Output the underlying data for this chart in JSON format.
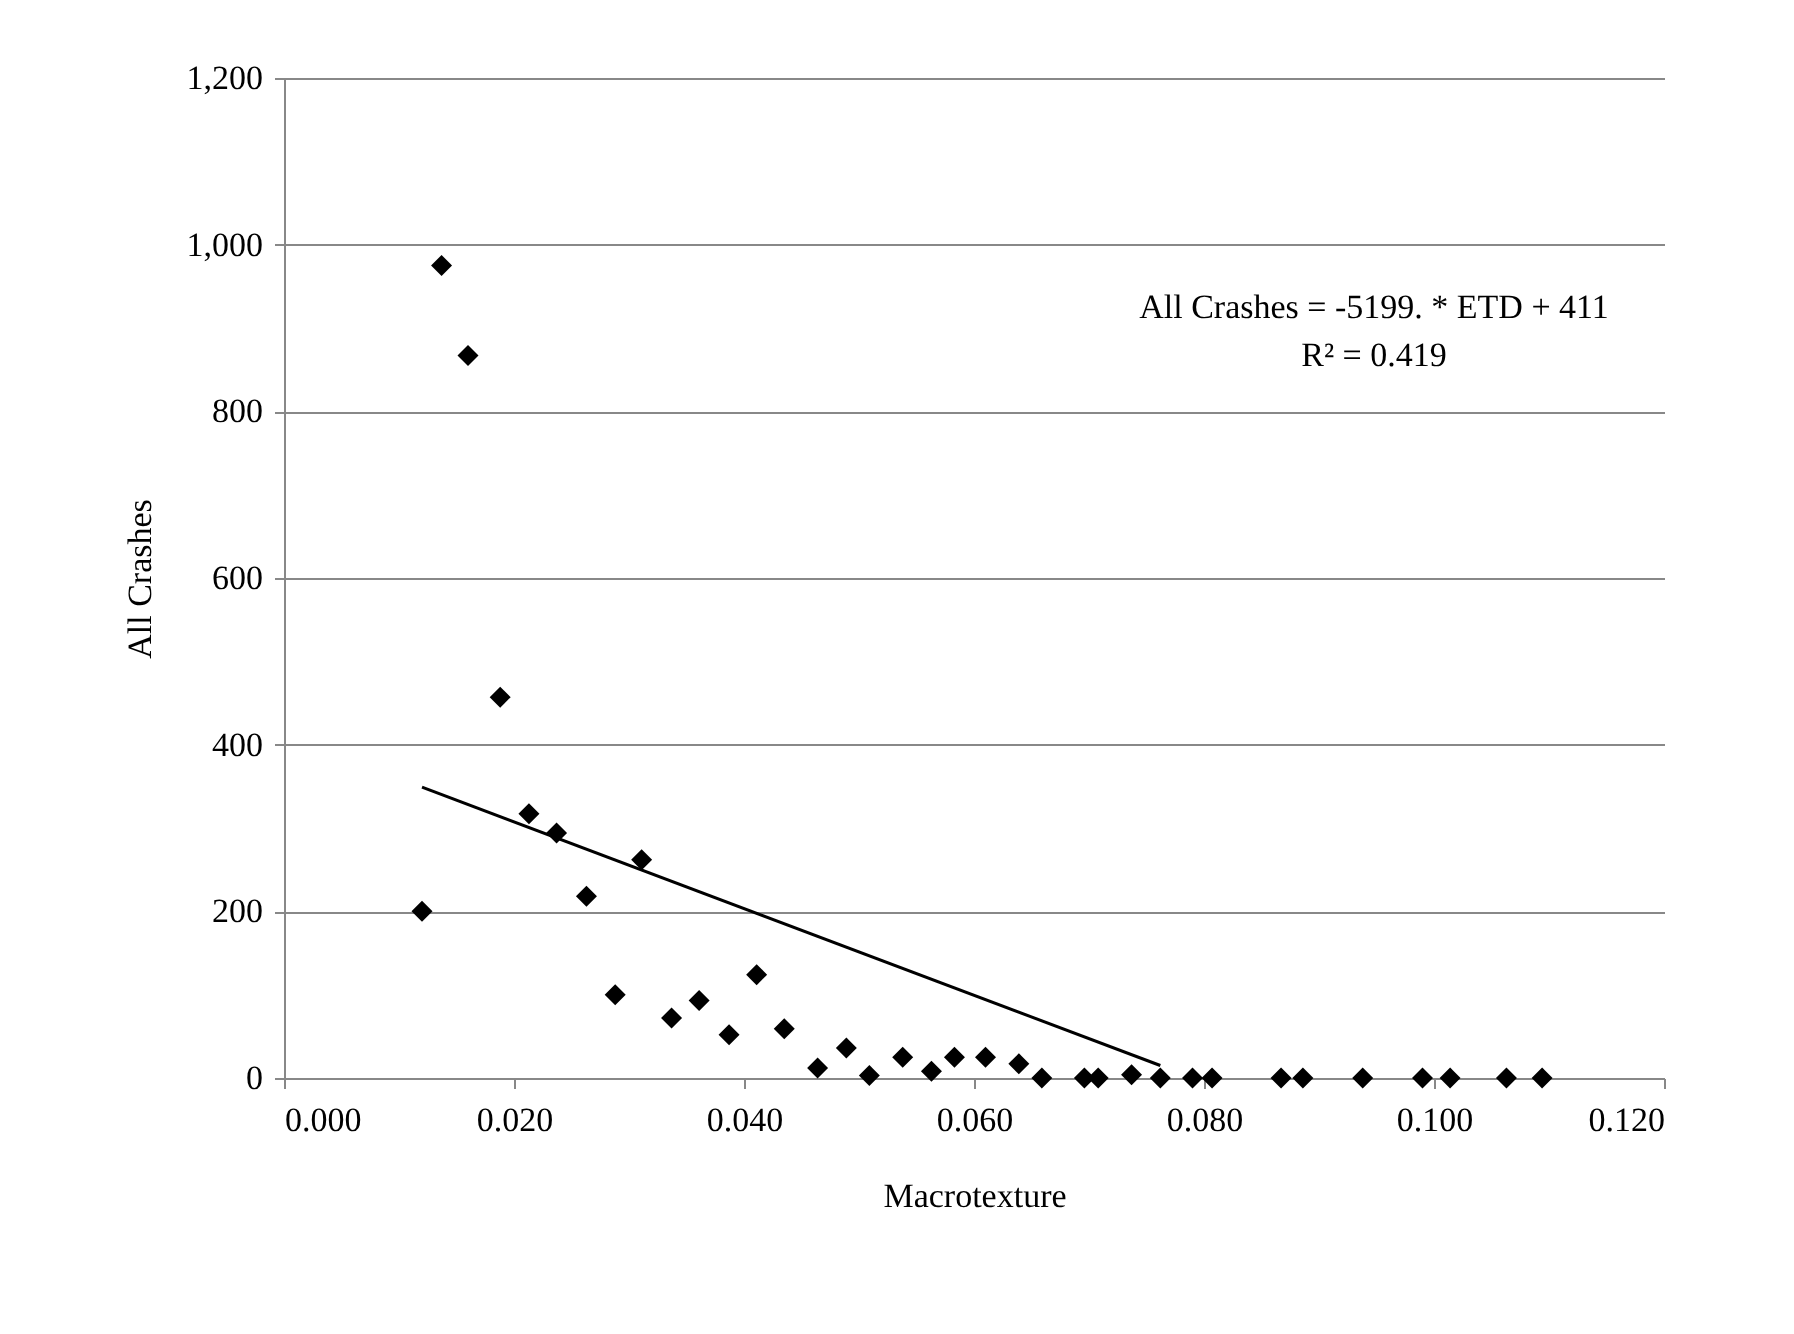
{
  "chart_data": {
    "type": "scatter",
    "xlabel": "Macrotexture",
    "ylabel": "All Crashes",
    "annotations": [
      "All Crashes = -5199. * ETD + 411",
      "R² = 0.419"
    ],
    "xlim": [
      0,
      0.12
    ],
    "xticks": [
      {
        "value": 0,
        "label": "0.000"
      },
      {
        "value": 0.02,
        "label": "0.020"
      },
      {
        "value": 0.04,
        "label": "0.040"
      },
      {
        "value": 0.06,
        "label": "0.060"
      },
      {
        "value": 0.08,
        "label": "0.080"
      },
      {
        "value": 0.1,
        "label": "0.100"
      },
      {
        "value": 0.12,
        "label": "0.120"
      }
    ],
    "ylim": [
      0,
      1200
    ],
    "yticks": [
      0,
      200,
      400,
      600,
      800,
      {
        "value": 1000,
        "label": "1,000"
      },
      {
        "value": 1200,
        "label": "1,200"
      }
    ],
    "grid": "y",
    "series": [
      {
        "marker": "diamond",
        "color": "#000000",
        "x": [
          0.012,
          0.0137,
          0.016,
          0.0188,
          0.0213,
          0.0237,
          0.0263,
          0.0288,
          0.0311,
          0.0337,
          0.0361,
          0.0387,
          0.0411,
          0.0435,
          0.0464,
          0.0489,
          0.0509,
          0.0538,
          0.0563,
          0.0583,
          0.061,
          0.0639,
          0.0659,
          0.0696,
          0.0708,
          0.0737,
          0.0762,
          0.079,
          0.0807,
          0.0867,
          0.0886,
          0.0938,
          0.099,
          0.1014,
          0.1063,
          0.1094
        ],
        "values": [
          200,
          975,
          867,
          457,
          317,
          294,
          218,
          100,
          262,
          72,
          93,
          52,
          124,
          59,
          12,
          36,
          3,
          25,
          8,
          25,
          25,
          17,
          0,
          0,
          0,
          4,
          0,
          0,
          0,
          0,
          0,
          0,
          0,
          0,
          0,
          0
        ]
      },
      {
        "type": "line",
        "line_style": "solid",
        "color": "#000000",
        "x": [
          0.012,
          0.0762
        ],
        "values": [
          349,
          15
        ]
      }
    ]
  }
}
